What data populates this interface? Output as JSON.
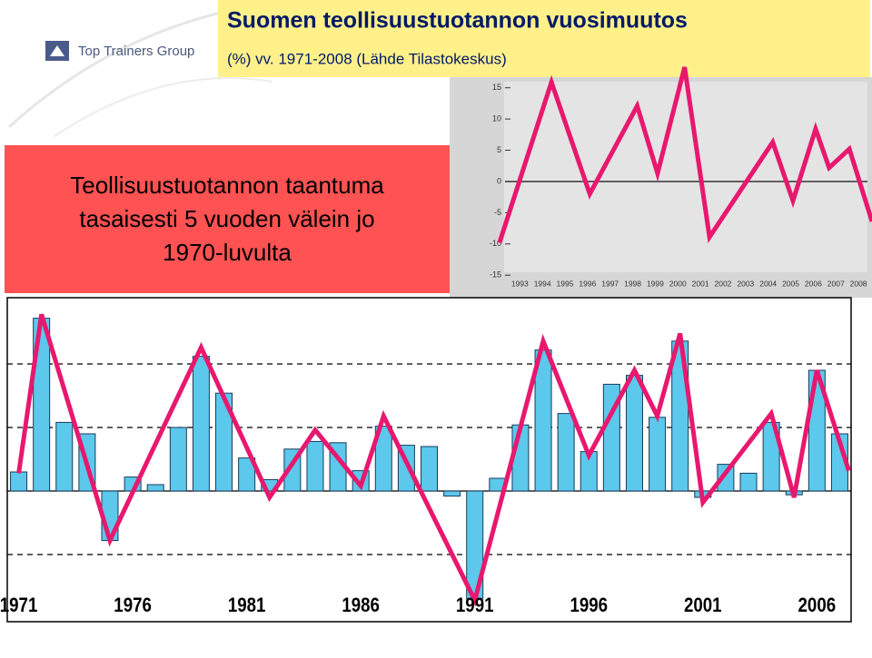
{
  "logo": "Top Trainers Group",
  "header": {
    "title": "Suomen teollisuustuotannon vuosimuutos",
    "subtitle": "(%) vv. 1971-2008 (Lähde Tilastokeskus)"
  },
  "callout": [
    "Teollisuustuotannon taantuma",
    "tasaisesti 5 vuoden välein jo",
    "1970-luvulta"
  ],
  "chart_data": [
    {
      "type": "bar",
      "categories": [
        "1971",
        null,
        null,
        null,
        null,
        "1976",
        null,
        null,
        null,
        null,
        "1981",
        null,
        null,
        null,
        null,
        "1986",
        null,
        null,
        null,
        null,
        "1991",
        null,
        null,
        null,
        null,
        "1996",
        null,
        null,
        null,
        null,
        "2001",
        null,
        null,
        null,
        null,
        "2006",
        null
      ],
      "series": [
        {
          "type": "bar",
          "color": "#5cc8ec",
          "values": [
            1.5,
            13.6,
            5.4,
            4.5,
            -3.9,
            1.1,
            0.5,
            5.0,
            10.6,
            7.7,
            2.6,
            0.9,
            3.3,
            3.9,
            3.8,
            1.6,
            5.1,
            3.6,
            3.5,
            -0.4,
            -8.5,
            1.0,
            5.2,
            11.1,
            6.1,
            3.1,
            8.4,
            9.1,
            5.8,
            11.8,
            -0.5,
            2.1,
            1.4,
            5.4,
            -0.3,
            9.5,
            4.5
          ]
        },
        {
          "type": "line",
          "color": "#e8186e",
          "x": [
            1971,
            1972,
            1975,
            1979,
            1982,
            1984,
            1986,
            1987,
            1991,
            1994,
            1996,
            1998,
            1999,
            2000,
            2001,
            2004,
            2005,
            2006,
            2007.4
          ],
          "values": [
            1.4,
            13.9,
            -3.9,
            11.3,
            -0.5,
            4.8,
            0.4,
            5.9,
            -8.6,
            11.8,
            2.8,
            9.5,
            5.9,
            12.4,
            -0.9,
            6.1,
            -0.5,
            9.5,
            1.6
          ]
        }
      ],
      "xlim": [
        1970.5,
        2007.5
      ],
      "ylim": [
        -10,
        15
      ],
      "yticks": [
        -5,
        0,
        5,
        10
      ],
      "grid": true
    },
    {
      "type": "line",
      "series": [
        {
          "color": "#e8186e",
          "x": [
            1992.1,
            1994.4,
            1996.1,
            1998.2,
            1999.1,
            2000.3,
            2001.4,
            2004.2,
            2005.1,
            2006.1,
            2006.7,
            2007.6,
            2008.6
          ],
          "values": [
            -9.8,
            15.9,
            -2.0,
            12.1,
            1.3,
            18.3,
            -8.9,
            6.3,
            -3.1,
            8.4,
            2.2,
            5.2,
            -6.4
          ]
        }
      ],
      "xlim": [
        1991.7,
        2008.6
      ],
      "ylim": [
        -18.6,
        16.7
      ],
      "xticks": [
        1993,
        1994,
        1995,
        1996,
        1997,
        1998,
        1999,
        2000,
        2001,
        2002,
        2003,
        2004,
        2005,
        2006,
        2007,
        2008
      ],
      "yticks": [
        15,
        10,
        5,
        0,
        -5,
        -10,
        -15
      ]
    }
  ]
}
